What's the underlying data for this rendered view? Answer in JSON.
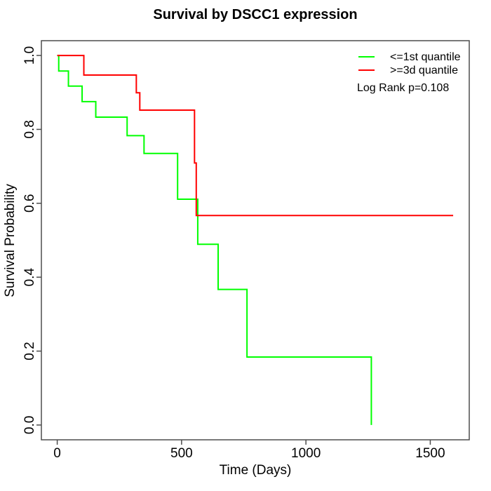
{
  "chart_data": {
    "type": "line",
    "subtype": "kaplan-meier-step",
    "title": "Survival by DSCC1 expression",
    "xlabel": "Time (Days)",
    "ylabel": "Survival Probability",
    "xlim": [
      0,
      1593
    ],
    "ylim": [
      0,
      1
    ],
    "axis_expansion": 0.04,
    "x_ticks": [
      0,
      500,
      1000,
      1500
    ],
    "x_tick_labels": [
      "0",
      "500",
      "1000",
      "1500"
    ],
    "y_ticks": [
      0,
      0.2,
      0.4,
      0.6,
      0.8,
      1.0
    ],
    "y_tick_labels": [
      "0.0",
      "0.2",
      "0.4",
      "0.6",
      "0.8",
      "1.0"
    ],
    "grid": false,
    "legend_position": "top-right",
    "annotation": "Log Rank p=0.108",
    "series": [
      {
        "name": "<=1st quantile",
        "color": "#00ff00",
        "start": [
          0,
          1.0
        ],
        "steps": [
          [
            6,
            0.958
          ],
          [
            45,
            0.917
          ],
          [
            100,
            0.875
          ],
          [
            155,
            0.833
          ],
          [
            281,
            0.783
          ],
          [
            349,
            0.735
          ],
          [
            484,
            0.611
          ],
          [
            565,
            0.489
          ],
          [
            647,
            0.367
          ],
          [
            763,
            0.184
          ],
          [
            1263,
            0.0
          ]
        ],
        "end_day": 1263
      },
      {
        "name": ">=3d quantile",
        "color": "#ff0000",
        "start": [
          0,
          1.0
        ],
        "steps": [
          [
            107,
            0.947
          ],
          [
            318,
            0.899
          ],
          [
            332,
            0.852
          ],
          [
            552,
            0.709
          ],
          [
            559,
            0.567
          ]
        ],
        "end_day": 1592
      }
    ]
  },
  "colors": {
    "axis": "#4d4d4d",
    "text": "#000000",
    "background": "#ffffff"
  }
}
